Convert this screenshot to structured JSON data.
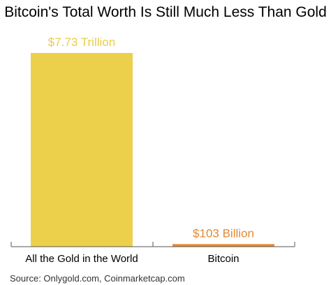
{
  "chart_data": {
    "type": "bar",
    "title": "Bitcoin's Total Worth Is Still Much Less Than Gold",
    "categories": [
      "All the Gold in the World",
      "Bitcoin"
    ],
    "values": [
      7730,
      103
    ],
    "unit": "USD billions",
    "data_labels": [
      "$7.73 Trillion",
      "$103 Billion"
    ],
    "colors": [
      "#ecd04c",
      "#e78b2f"
    ],
    "label_colors": [
      "#e9cd48",
      "#e18a35"
    ],
    "ylim": [
      0,
      7730
    ],
    "grid": false,
    "legend": "none",
    "source": "Source: Onlygold.com, Coinmarketcap.com"
  }
}
